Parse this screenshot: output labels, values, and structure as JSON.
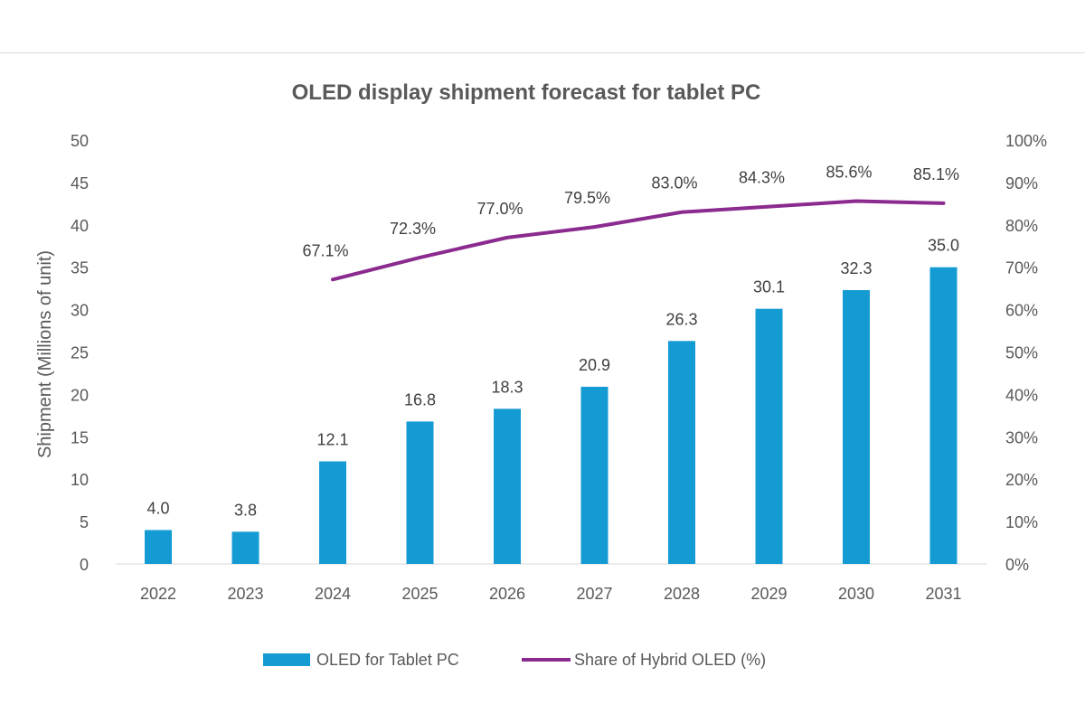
{
  "chart_data": {
    "type": "bar",
    "title": "OLED display shipment forecast for tablet PC",
    "ylabel": "Shipment (Millions of unit)",
    "xlabel": "",
    "categories": [
      "2022",
      "2023",
      "2024",
      "2025",
      "2026",
      "2027",
      "2028",
      "2029",
      "2030",
      "2031"
    ],
    "ylim": [
      0,
      50
    ],
    "y_ticks": [
      "0",
      "5",
      "10",
      "15",
      "20",
      "25",
      "30",
      "35",
      "40",
      "45",
      "50"
    ],
    "y2lim": [
      0,
      100
    ],
    "y2_ticks": [
      "0%",
      "10%",
      "20%",
      "30%",
      "40%",
      "50%",
      "60%",
      "70%",
      "80%",
      "90%",
      "100%"
    ],
    "grid": false,
    "legend_position": "bottom",
    "series": [
      {
        "name": "OLED for Tablet PC",
        "type": "bar",
        "axis": "left",
        "color": "#159bd3",
        "values": [
          4.0,
          3.8,
          12.1,
          16.8,
          18.3,
          20.9,
          26.3,
          30.1,
          32.3,
          35.0
        ],
        "labels": [
          "4.0",
          "3.8",
          "12.1",
          "16.8",
          "18.3",
          "20.9",
          "26.3",
          "30.1",
          "32.3",
          "35.0"
        ]
      },
      {
        "name": "Share of Hybrid OLED (%)",
        "type": "line",
        "axis": "right",
        "color": "#8b2a8f",
        "values": [
          null,
          null,
          67.1,
          72.3,
          77.0,
          79.5,
          83.0,
          84.3,
          85.6,
          85.1
        ],
        "labels": [
          null,
          null,
          "67.1%",
          "72.3%",
          "77.0%",
          "79.5%",
          "83.0%",
          "84.3%",
          "85.6%",
          "85.1%"
        ]
      }
    ]
  }
}
